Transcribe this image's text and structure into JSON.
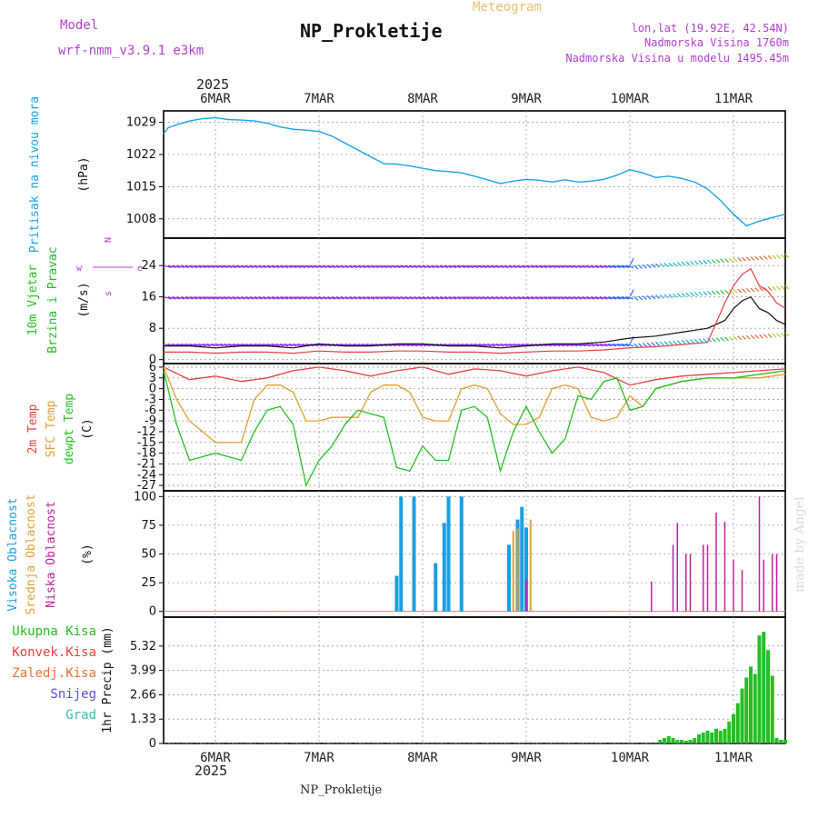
{
  "header": {
    "model_label": "Model",
    "model_name": "wrf-nmm_v3.9.1 e3km",
    "title": "NP_Prokletije",
    "meteogram_label": "Meteogram",
    "lonlat": "lon,lat (19.92E, 42.54N)",
    "altitude": "Nadmorska Visina 1760m",
    "model_altitude": "Nadmorska Visina u modelu 1495.45m",
    "year": "2025",
    "footer_title": "NP_Prokletije",
    "watermark": "made by Angel"
  },
  "colors": {
    "pressure": "#1aa3e8",
    "temp2m": "#e84040",
    "sfc": "#e0a030",
    "dew": "#22c022",
    "high_cloud": "#1a9fe0",
    "mid_cloud": "#e0a030",
    "low_cloud": "#c020a0",
    "precip": "#22c022",
    "purple_label": "#b040d0"
  },
  "chart_data": [
    {
      "type": "line",
      "name": "pressure",
      "title": "Pritisak na nivou mora",
      "ylabel": "(hPa)",
      "ylim": [
        1003.8,
        1031.5
      ],
      "yticks": [
        1008,
        1015,
        1022,
        1029
      ],
      "xlim": [
        0,
        144
      ],
      "x_day_ticks": [
        {
          "x": 12,
          "label": "6MAR"
        },
        {
          "x": 36,
          "label": "7MAR"
        },
        {
          "x": 60,
          "label": "8MAR"
        },
        {
          "x": 84,
          "label": "9MAR"
        },
        {
          "x": 108,
          "label": "10MAR"
        },
        {
          "x": 132,
          "label": "11MAR"
        }
      ],
      "series": [
        {
          "name": "MSLP",
          "x": [
            0,
            1,
            3,
            6,
            9,
            12,
            15,
            18,
            21,
            24,
            27,
            30,
            33,
            36,
            39,
            42,
            45,
            48,
            51,
            54,
            57,
            60,
            63,
            66,
            69,
            72,
            75,
            78,
            81,
            84,
            87,
            90,
            93,
            96,
            99,
            102,
            105,
            108,
            111,
            114,
            117,
            120,
            123,
            126,
            129,
            132,
            135,
            138,
            141,
            144
          ],
          "values": [
            1026.5,
            1027.8,
            1028.5,
            1029.3,
            1029.8,
            1030.0,
            1029.6,
            1029.5,
            1029.3,
            1028.8,
            1028.0,
            1027.5,
            1027.3,
            1027.0,
            1026.0,
            1024.5,
            1023.0,
            1021.5,
            1020.0,
            1019.9,
            1019.5,
            1019.0,
            1018.5,
            1018.3,
            1018.0,
            1017.3,
            1016.5,
            1015.7,
            1016.2,
            1016.6,
            1016.4,
            1016.0,
            1016.5,
            1016.0,
            1016.2,
            1016.6,
            1017.5,
            1018.7,
            1018.0,
            1017.0,
            1017.3,
            1016.8,
            1016.0,
            1014.5,
            1012.0,
            1009.0,
            1006.5,
            1007.5,
            1008.3,
            1009.0
          ]
        }
      ]
    },
    {
      "type": "line",
      "name": "wind",
      "title": "10m Vjetar Brzina i Pravac",
      "ylabel": "(m/s)",
      "direction_legend": [
        "N",
        "w",
        "e",
        "s"
      ],
      "ylim": [
        -1,
        31
      ],
      "yticks": [
        0,
        8,
        16,
        24
      ],
      "xlim": [
        0,
        144
      ],
      "series": [
        {
          "name": "wind speed",
          "x": [
            0,
            6,
            12,
            18,
            24,
            30,
            36,
            42,
            48,
            54,
            60,
            66,
            72,
            78,
            84,
            90,
            96,
            102,
            108,
            114,
            120,
            126,
            130,
            132,
            134,
            136,
            138,
            140,
            142,
            144
          ],
          "values": [
            3.5,
            3.5,
            3.0,
            3.5,
            3.5,
            3.0,
            4.0,
            3.5,
            3.5,
            4.0,
            4.0,
            3.5,
            3.5,
            3.0,
            3.5,
            4.0,
            4.0,
            4.5,
            5.5,
            6.0,
            7.0,
            8.0,
            10.0,
            13.0,
            15.0,
            16.0,
            13.0,
            12.0,
            10.0,
            9.0
          ]
        }
      ]
    },
    {
      "type": "line",
      "name": "temperature",
      "title": "2m Temp / SFC Temp / dewpt Temp",
      "ylabel": "(C)",
      "ylim": [
        -28.5,
        7
      ],
      "yticks": [
        6,
        3,
        0,
        -3,
        -6,
        -9,
        -12,
        -15,
        -18,
        -21,
        -24,
        -27
      ],
      "xlim": [
        0,
        144
      ],
      "series": [
        {
          "name": "2m Temp",
          "x": [
            0,
            6,
            12,
            18,
            24,
            30,
            36,
            42,
            48,
            54,
            60,
            66,
            72,
            78,
            84,
            90,
            96,
            102,
            108,
            114,
            120,
            126,
            132,
            138,
            144
          ],
          "values": [
            6,
            2.5,
            3.5,
            2.0,
            3.0,
            5.0,
            6.0,
            5.0,
            3.5,
            5.0,
            6.0,
            4.0,
            5.5,
            5.0,
            3.5,
            5.0,
            6.0,
            4.5,
            1.0,
            2.5,
            3.5,
            4.0,
            4.5,
            5.0,
            5.5
          ]
        },
        {
          "name": "SFC Temp",
          "x": [
            0,
            3,
            6,
            9,
            12,
            15,
            18,
            21,
            24,
            27,
            30,
            33,
            36,
            39,
            42,
            45,
            48,
            51,
            54,
            57,
            60,
            63,
            66,
            69,
            72,
            75,
            78,
            81,
            84,
            87,
            90,
            93,
            96,
            99,
            102,
            105,
            108,
            111,
            114,
            120,
            126,
            132,
            138,
            144
          ],
          "values": [
            6,
            -3,
            -9,
            -12,
            -15,
            -15,
            -15,
            -3,
            1,
            1,
            -1,
            -9,
            -9,
            -8,
            -8,
            -8,
            -1,
            1,
            1,
            -1,
            -8,
            -9,
            -9,
            0,
            1,
            0,
            -7,
            -10,
            -10,
            -8,
            0,
            1,
            0,
            -8,
            -9,
            -8,
            -2,
            -5,
            0,
            2,
            3,
            3,
            3,
            4
          ]
        },
        {
          "name": "dewpt Temp",
          "x": [
            0,
            3,
            6,
            9,
            12,
            15,
            18,
            21,
            24,
            27,
            30,
            33,
            36,
            39,
            42,
            45,
            48,
            51,
            54,
            57,
            60,
            63,
            66,
            69,
            72,
            75,
            78,
            81,
            84,
            87,
            90,
            93,
            96,
            99,
            102,
            105,
            108,
            111,
            114,
            120,
            126,
            132,
            138,
            144
          ],
          "values": [
            5,
            -10,
            -20,
            -19,
            -18,
            -19,
            -20,
            -12,
            -6,
            -5,
            -10,
            -27,
            -20,
            -16,
            -10,
            -6,
            -7,
            -8,
            -22,
            -23,
            -16,
            -20,
            -20,
            -6,
            -5,
            -8,
            -23,
            -12,
            -5,
            -12,
            -18,
            -14,
            -2,
            -3,
            2,
            3,
            -6,
            -5,
            0,
            2,
            3,
            3,
            4,
            5
          ]
        }
      ]
    },
    {
      "type": "bar",
      "name": "cloud cover",
      "title": "Visoka / Srednja / Niska Oblacnost",
      "ylabel": "(%)",
      "ylim": [
        -5,
        105
      ],
      "yticks": [
        0,
        25,
        50,
        75,
        100
      ],
      "xlim": [
        0,
        144
      ],
      "series": [
        {
          "name": "Visoka Oblacnost",
          "x": [
            54,
            55,
            58,
            63,
            65,
            66,
            69,
            80,
            82,
            83,
            84
          ],
          "values": [
            31,
            100,
            100,
            42,
            77,
            100,
            100,
            58,
            80,
            91,
            73
          ]
        },
        {
          "name": "Srednja Oblacnost",
          "x": [
            81,
            82,
            85
          ],
          "values": [
            70,
            72,
            80
          ]
        },
        {
          "name": "Niska Oblacnost",
          "x": [
            84,
            113,
            118,
            119,
            121,
            122,
            125,
            126,
            128,
            130,
            132,
            134,
            138,
            139,
            141,
            142
          ],
          "values": [
            28,
            26,
            58,
            77,
            50,
            50,
            58,
            58,
            86,
            78,
            45,
            36,
            100,
            45,
            50,
            50
          ]
        }
      ]
    },
    {
      "type": "bar",
      "name": "precipitation",
      "title": "1hr Precip",
      "ylabel": "1hr Precip (mm)",
      "legend": [
        "Ukupna Kisa",
        "Konvek.Kisa",
        "Zaledj.Kisa",
        "Snijeg",
        "Grad"
      ],
      "ylim": [
        0,
        6.9
      ],
      "yticks": [
        0,
        1.33,
        2.66,
        3.99,
        5.32
      ],
      "xlim": [
        0,
        144
      ],
      "series": [
        {
          "name": "Ukupna Kisa",
          "x": [
            115,
            116,
            117,
            118,
            119,
            120,
            121,
            122,
            123,
            124,
            125,
            126,
            127,
            128,
            129,
            130,
            131,
            132,
            133,
            134,
            135,
            136,
            137,
            138,
            139,
            140,
            141,
            142,
            143,
            144
          ],
          "values": [
            0.2,
            0.3,
            0.4,
            0.3,
            0.2,
            0.2,
            0.15,
            0.2,
            0.3,
            0.5,
            0.6,
            0.7,
            0.6,
            0.8,
            0.7,
            0.8,
            1.2,
            1.6,
            2.2,
            3.0,
            3.6,
            4.2,
            3.8,
            5.9,
            6.1,
            5.1,
            3.7,
            0.3,
            0.2,
            0.2
          ]
        }
      ]
    }
  ]
}
